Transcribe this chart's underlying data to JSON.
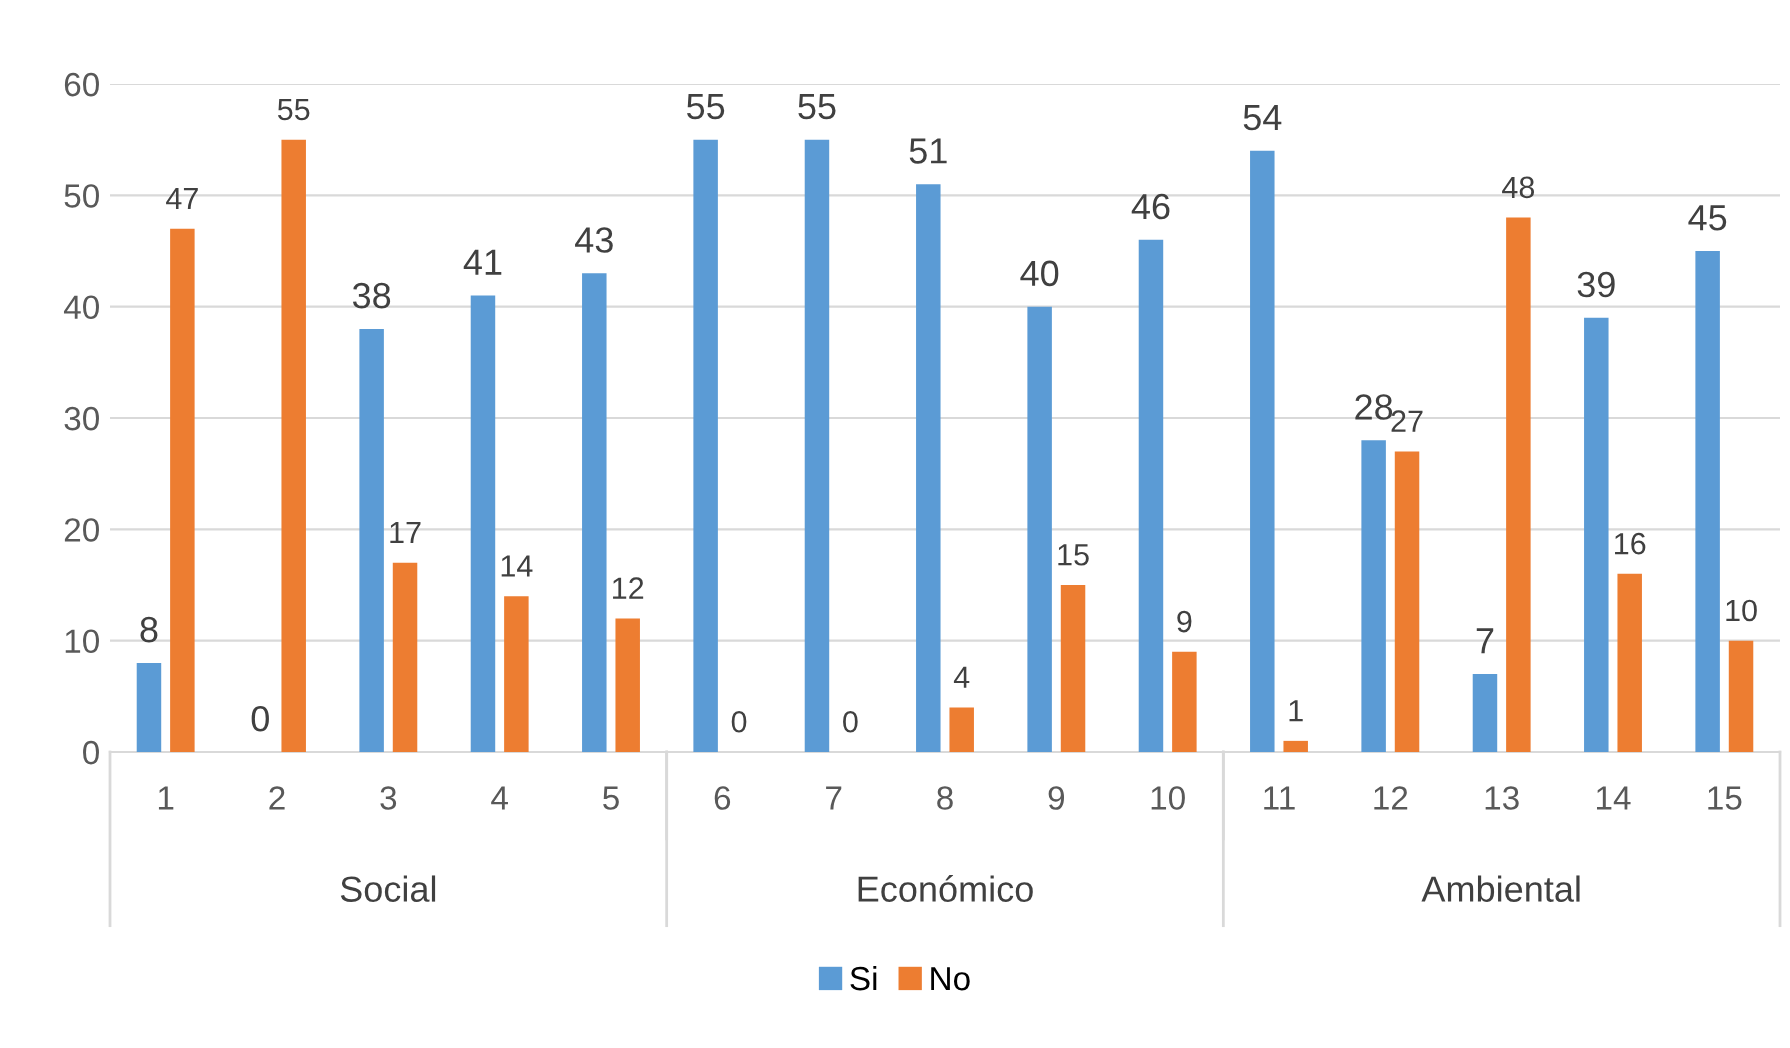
{
  "chart_data": {
    "type": "bar",
    "categories": [
      "1",
      "2",
      "3",
      "4",
      "5",
      "6",
      "7",
      "8",
      "9",
      "10",
      "11",
      "12",
      "13",
      "14",
      "15"
    ],
    "series": [
      {
        "name": "Si",
        "color": "#5b9bd5",
        "values": [
          8,
          0,
          38,
          41,
          43,
          55,
          55,
          51,
          40,
          46,
          54,
          28,
          7,
          39,
          45
        ]
      },
      {
        "name": "No",
        "color": "#ed7d31",
        "values": [
          47,
          55,
          17,
          14,
          12,
          0,
          0,
          4,
          15,
          9,
          1,
          27,
          48,
          16,
          10
        ]
      }
    ],
    "annotations": [
      "Social",
      "Económico",
      "Ambiental"
    ],
    "ylim": [
      0,
      60
    ],
    "yticks": [
      0,
      10,
      20,
      30,
      40,
      50,
      60
    ],
    "grid": "y",
    "legend": "bottom",
    "data_labels": true
  }
}
